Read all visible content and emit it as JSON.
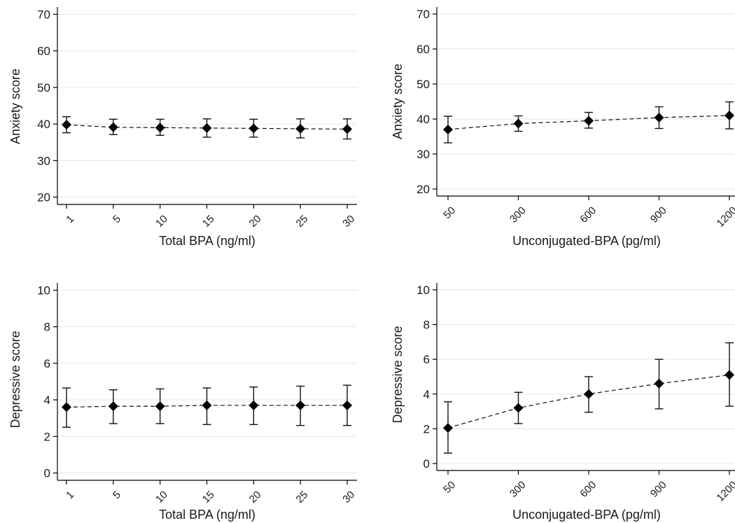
{
  "chart_data": [
    {
      "type": "line",
      "xlabel": "Total BPA (ng/ml)",
      "ylabel": "Anxiety score",
      "x": [
        1,
        5,
        10,
        15,
        20,
        25,
        30
      ],
      "x_tick_labels": [
        "1",
        "5",
        "10",
        "15",
        "20",
        "25",
        "30"
      ],
      "y_ticks": [
        20,
        30,
        40,
        50,
        60,
        70
      ],
      "ylim": [
        18,
        72
      ],
      "grid": true,
      "series": [
        {
          "values": [
            39.8,
            39.1,
            39.0,
            38.9,
            38.8,
            38.7,
            38.6
          ],
          "ci_lower": [
            37.6,
            37.1,
            36.9,
            36.4,
            36.4,
            36.2,
            35.9
          ],
          "ci_upper": [
            42.0,
            41.3,
            41.3,
            41.4,
            41.3,
            41.4,
            41.4
          ]
        }
      ]
    },
    {
      "type": "line",
      "xlabel": "Unconjugated-BPA (pg/ml)",
      "ylabel": "Anxiety score",
      "x": [
        50,
        300,
        600,
        900,
        1200
      ],
      "x_tick_labels": [
        "50",
        "300",
        "600",
        "900",
        "1200"
      ],
      "y_ticks": [
        20,
        30,
        40,
        50,
        60,
        70
      ],
      "ylim": [
        18,
        72
      ],
      "grid": true,
      "series": [
        {
          "values": [
            37.0,
            38.7,
            39.5,
            40.4,
            41.0
          ],
          "ci_lower": [
            33.2,
            36.5,
            37.4,
            37.3,
            37.2
          ],
          "ci_upper": [
            40.8,
            40.9,
            41.9,
            43.5,
            44.9
          ]
        }
      ]
    },
    {
      "type": "line",
      "xlabel": "Total BPA (ng/ml)",
      "ylabel": "Depressive score",
      "x": [
        1,
        5,
        10,
        15,
        20,
        25,
        30
      ],
      "x_tick_labels": [
        "1",
        "5",
        "10",
        "15",
        "20",
        "25",
        "30"
      ],
      "y_ticks": [
        0,
        2,
        4,
        6,
        8,
        10
      ],
      "ylim": [
        -0.4,
        10.4
      ],
      "grid": true,
      "series": [
        {
          "values": [
            3.6,
            3.65,
            3.65,
            3.7,
            3.7,
            3.7,
            3.7
          ],
          "ci_lower": [
            2.5,
            2.7,
            2.7,
            2.65,
            2.65,
            2.6,
            2.6
          ],
          "ci_upper": [
            4.65,
            4.55,
            4.6,
            4.65,
            4.7,
            4.75,
            4.8
          ]
        }
      ]
    },
    {
      "type": "line",
      "xlabel": "Unconjugated-BPA (pg/ml)",
      "ylabel": "Depressive score",
      "x": [
        50,
        300,
        600,
        900,
        1200
      ],
      "x_tick_labels": [
        "50",
        "300",
        "600",
        "900",
        "1200"
      ],
      "y_ticks": [
        0,
        2,
        4,
        6,
        8,
        10
      ],
      "ylim": [
        -0.4,
        10.4
      ],
      "grid": true,
      "series": [
        {
          "values": [
            2.05,
            3.2,
            4.0,
            4.6,
            5.1
          ],
          "ci_lower": [
            0.6,
            2.3,
            2.95,
            3.15,
            3.3
          ],
          "ci_upper": [
            3.55,
            4.1,
            5.0,
            6.0,
            6.95
          ]
        }
      ]
    }
  ]
}
